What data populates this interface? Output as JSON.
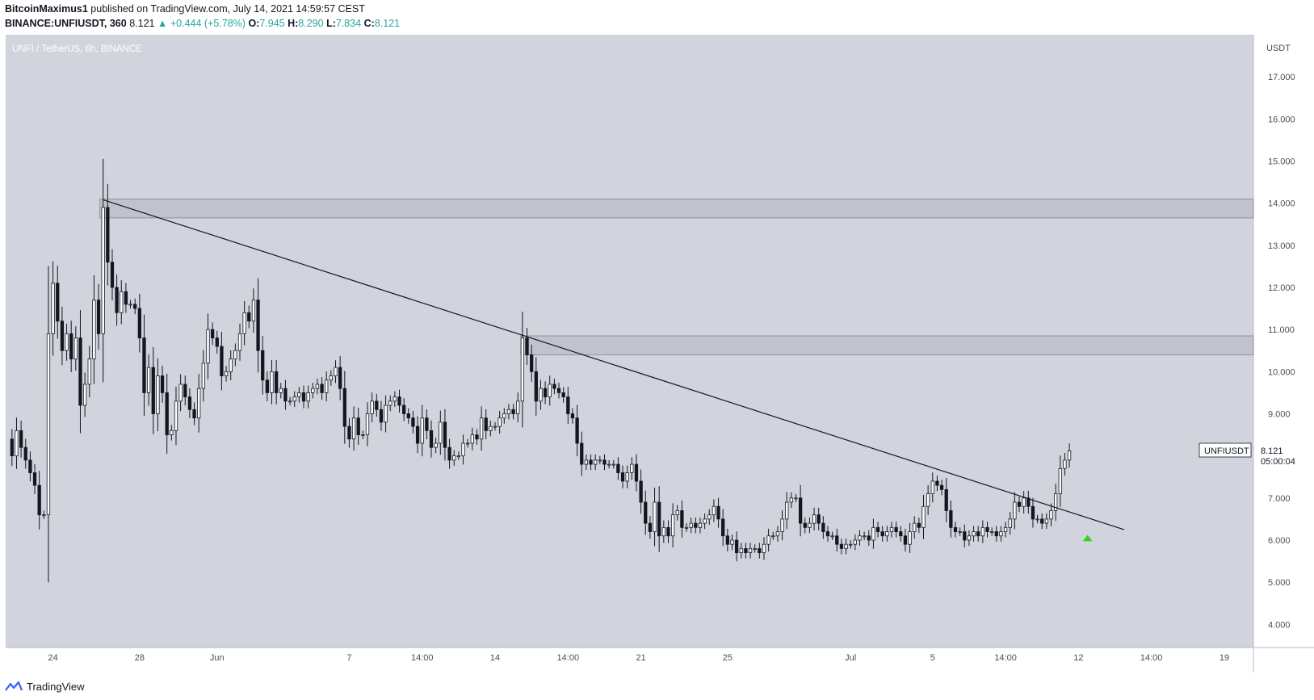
{
  "header": {
    "author": "BitcoinMaximus1",
    "published_text": "published on TradingView.com, July 14, 2021 14:59:57 CEST",
    "symbol_line": "BINANCE:UNFIUSDT, 360",
    "last": "8.121",
    "change": "+0.444 (+5.78%)",
    "o_label": "O:",
    "o": "7.945",
    "h_label": "H:",
    "h": "8.290",
    "l_label": "L:",
    "l": "7.834",
    "c_label": "C:",
    "c": "8.121",
    "up_arrow": "▲"
  },
  "chart_title": "UNFI / TetherUS, 6h, BINANCE",
  "price_tag": {
    "symbol": "UNFIUSDT",
    "price": "8.121",
    "countdown": "05:00:04"
  },
  "footer": {
    "brand": "TradingView",
    "logo_icon": "tradingview-logo-icon"
  },
  "colors": {
    "background": "#d1d4dc",
    "candle_up": "#ffffff",
    "candle_down": "#131722",
    "zone_fill": "#b2b5be",
    "signal_arrow": "#39d11f",
    "axis_text": "#4a4e59"
  },
  "chart_data": {
    "type": "candlestick",
    "title": "UNFI / TetherUS, 6h, BINANCE",
    "ylabel": "USDT",
    "ylim": [
      3.45,
      18.0
    ],
    "y_ticks": [
      4.0,
      5.0,
      6.0,
      7.0,
      8.0,
      9.0,
      10.0,
      11.0,
      12.0,
      13.0,
      14.0,
      15.0,
      16.0,
      17.0
    ],
    "x_ticks": [
      {
        "label": "24",
        "candle": 9
      },
      {
        "label": "28",
        "candle": 28
      },
      {
        "label": "Jun",
        "candle": 45
      },
      {
        "label": "7",
        "candle": 74
      },
      {
        "label": "14:00",
        "candle": 90
      },
      {
        "label": "14",
        "candle": 106
      },
      {
        "label": "14:00",
        "candle": 122
      },
      {
        "label": "21",
        "candle": 138
      },
      {
        "label": "25",
        "candle": 157
      },
      {
        "label": "Jul",
        "candle": 184
      },
      {
        "label": "5",
        "candle": 202
      },
      {
        "label": "14:00",
        "candle": 218
      },
      {
        "label": "12",
        "candle": 234
      },
      {
        "label": "14:00",
        "candle": 250
      },
      {
        "label": "19",
        "candle": 266
      }
    ],
    "visible_candles": 272,
    "closes": [
      8.0,
      8.6,
      8.2,
      7.9,
      7.6,
      7.3,
      6.6,
      6.6,
      10.9,
      12.1,
      11.2,
      10.5,
      10.9,
      10.3,
      10.8,
      9.2,
      9.7,
      10.3,
      11.7,
      10.9,
      13.9,
      12.6,
      12.0,
      11.4,
      11.9,
      11.6,
      11.6,
      11.5,
      10.8,
      9.5,
      10.1,
      9.0,
      9.9,
      9.5,
      8.5,
      8.6,
      9.3,
      9.7,
      9.4,
      9.1,
      8.9,
      9.6,
      10.2,
      11.0,
      10.8,
      10.6,
      9.9,
      10.0,
      10.3,
      10.5,
      10.9,
      11.4,
      11.2,
      11.7,
      10.5,
      9.8,
      9.5,
      10.0,
      9.5,
      9.6,
      9.3,
      9.3,
      9.4,
      9.5,
      9.3,
      9.5,
      9.6,
      9.7,
      9.5,
      9.8,
      9.9,
      10.1,
      9.6,
      8.7,
      8.4,
      8.9,
      8.5,
      8.5,
      9.0,
      9.3,
      9.1,
      8.8,
      9.2,
      9.3,
      9.4,
      9.2,
      9.0,
      8.9,
      8.7,
      8.3,
      8.9,
      8.6,
      8.2,
      8.3,
      8.8,
      8.2,
      7.9,
      8.0,
      8.0,
      8.3,
      8.3,
      8.5,
      8.4,
      8.9,
      8.6,
      8.7,
      8.7,
      8.9,
      9.0,
      9.1,
      9.0,
      9.3,
      10.8,
      10.4,
      10.0,
      9.3,
      9.6,
      9.4,
      9.7,
      9.6,
      9.5,
      9.4,
      9.0,
      8.9,
      8.3,
      7.8,
      7.9,
      7.8,
      7.9,
      7.9,
      7.8,
      7.8,
      7.8,
      7.6,
      7.4,
      7.6,
      7.8,
      7.4,
      6.9,
      6.4,
      6.2,
      6.9,
      6.1,
      6.3,
      6.1,
      6.6,
      6.7,
      6.3,
      6.3,
      6.4,
      6.3,
      6.4,
      6.5,
      6.6,
      6.8,
      6.5,
      6.1,
      5.9,
      6.0,
      5.7,
      5.8,
      5.7,
      5.8,
      5.8,
      5.7,
      5.9,
      6.1,
      6.1,
      6.2,
      6.5,
      6.9,
      7.0,
      7.0,
      6.4,
      6.3,
      6.4,
      6.6,
      6.4,
      6.2,
      6.1,
      6.1,
      5.9,
      5.8,
      5.9,
      5.9,
      6.0,
      6.1,
      6.1,
      6.0,
      6.3,
      6.2,
      6.1,
      6.2,
      6.3,
      6.2,
      6.1,
      5.9,
      6.2,
      6.4,
      6.3,
      6.8,
      7.1,
      7.4,
      7.3,
      7.2,
      6.7,
      6.3,
      6.2,
      6.2,
      6.0,
      6.1,
      6.2,
      6.1,
      6.3,
      6.2,
      6.2,
      6.1,
      6.2,
      6.3,
      6.5,
      6.9,
      6.8,
      7.0,
      6.8,
      6.5,
      6.5,
      6.4,
      6.5,
      6.7,
      7.1,
      7.7,
      7.9,
      8.12
    ]
  }
}
